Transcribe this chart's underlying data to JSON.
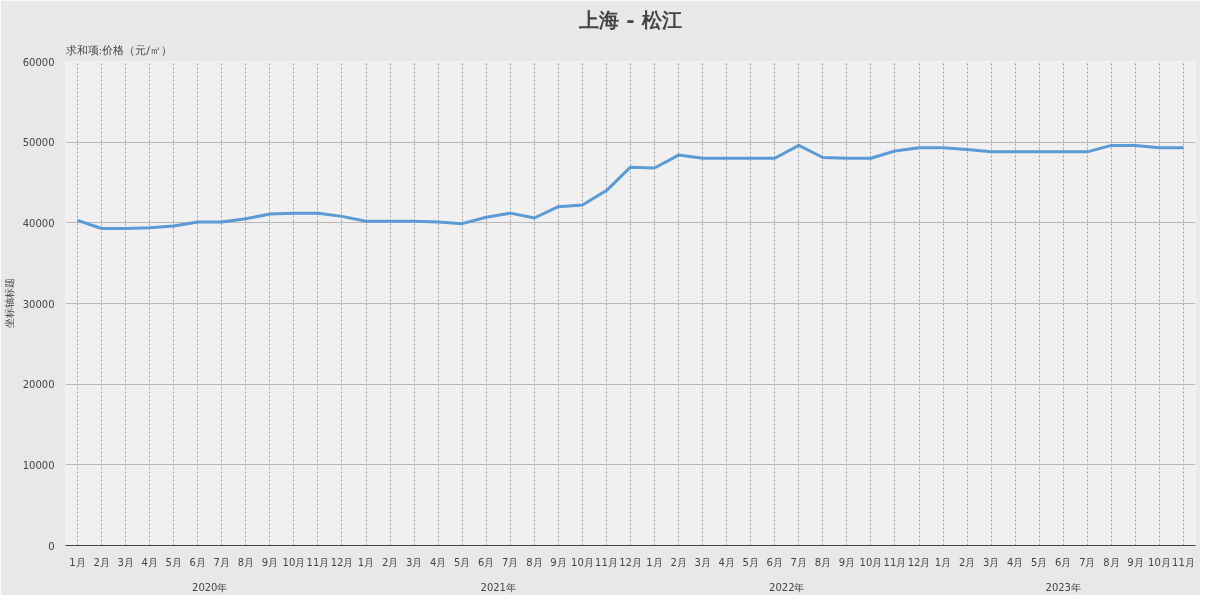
{
  "chart_data": {
    "type": "line",
    "title": "上海 - 松江",
    "ylabel": "坐标轴标题",
    "annotations": [
      "求和项:价格（元/㎡）",
      "2020年",
      "2021年",
      "2022年",
      "2023年"
    ],
    "categories": [
      "1月",
      "2月",
      "3月",
      "4月",
      "5月",
      "6月",
      "7月",
      "8月",
      "9月",
      "10月",
      "11月",
      "12月",
      "1月",
      "2月",
      "3月",
      "4月",
      "5月",
      "6月",
      "7月",
      "8月",
      "9月",
      "10月",
      "11月",
      "12月",
      "1月",
      "2月",
      "3月",
      "4月",
      "5月",
      "6月",
      "7月",
      "8月",
      "9月",
      "10月",
      "11月",
      "12月",
      "1月",
      "2月",
      "3月",
      "4月",
      "5月",
      "6月",
      "7月",
      "8月",
      "9月",
      "10月",
      "11月"
    ],
    "series": [
      {
        "color": "#5b9bd5",
        "values": [
          40300,
          39300,
          39300,
          39400,
          39600,
          40100,
          40100,
          40500,
          41100,
          41200,
          41200,
          40800,
          40200,
          40200,
          40200,
          40100,
          39900,
          40700,
          41200,
          40600,
          42000,
          42200,
          44000,
          46900,
          46800,
          48400,
          48000,
          48000,
          48000,
          48000,
          49600,
          48100,
          48000,
          48000,
          48900,
          49300,
          49300,
          49100,
          48800,
          48800,
          48800,
          48800,
          48800,
          49600,
          49600,
          49300,
          49300
        ]
      }
    ],
    "ylim": [
      0,
      60000
    ],
    "yticks": [
      0,
      10000,
      20000,
      30000,
      40000,
      50000,
      60000
    ],
    "grid": true,
    "marker": "none",
    "line_style": "solid"
  }
}
